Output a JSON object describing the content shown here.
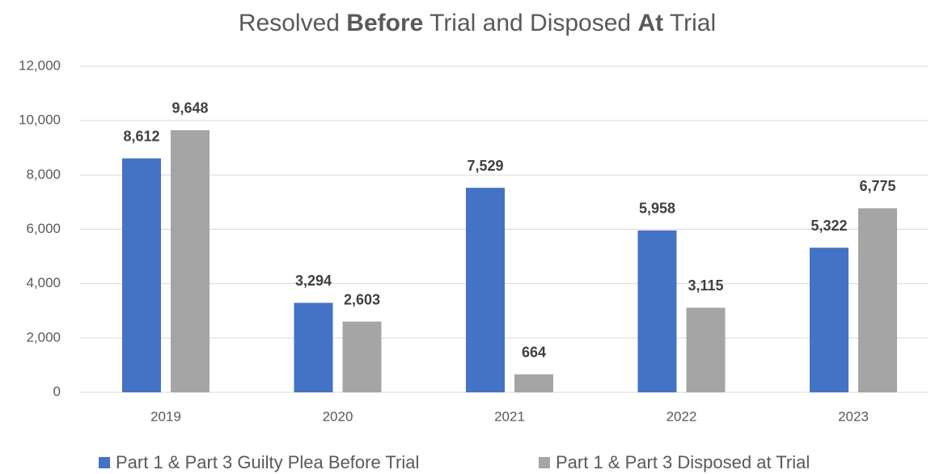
{
  "chart_data": {
    "type": "bar",
    "title": [
      "Resolved ",
      "Before",
      " Trial and Disposed ",
      "At",
      " Trial"
    ],
    "title_bold": [
      1,
      3
    ],
    "categories": [
      "2019",
      "2020",
      "2021",
      "2022",
      "2023"
    ],
    "series": [
      {
        "name": "Part 1 & Part 3 Guilty Plea Before Trial",
        "color": "#4472c4",
        "values": [
          8612,
          3294,
          7529,
          5958,
          5322
        ],
        "value_labels": [
          "8,612",
          "3,294",
          "7,529",
          "5,958",
          "5,322"
        ]
      },
      {
        "name": "Part 1 & Part 3 Disposed at Trial",
        "color": "#a5a5a5",
        "values": [
          9648,
          2603,
          664,
          3115,
          6775
        ],
        "value_labels": [
          "9,648",
          "2,603",
          "664",
          "3,115",
          "6,775"
        ]
      }
    ],
    "ylim": [
      0,
      12000
    ],
    "yticks": [
      0,
      {
        "value": 2000,
        "label": "2,000"
      },
      {
        "value": 4000,
        "label": "4,000"
      },
      {
        "value": 6000,
        "label": "6,000"
      },
      {
        "value": 8000,
        "label": "8,000"
      },
      {
        "value": 10000,
        "label": "10,000"
      },
      {
        "value": 12000,
        "label": "12,000"
      }
    ],
    "grid": true,
    "legend": "bottom"
  }
}
